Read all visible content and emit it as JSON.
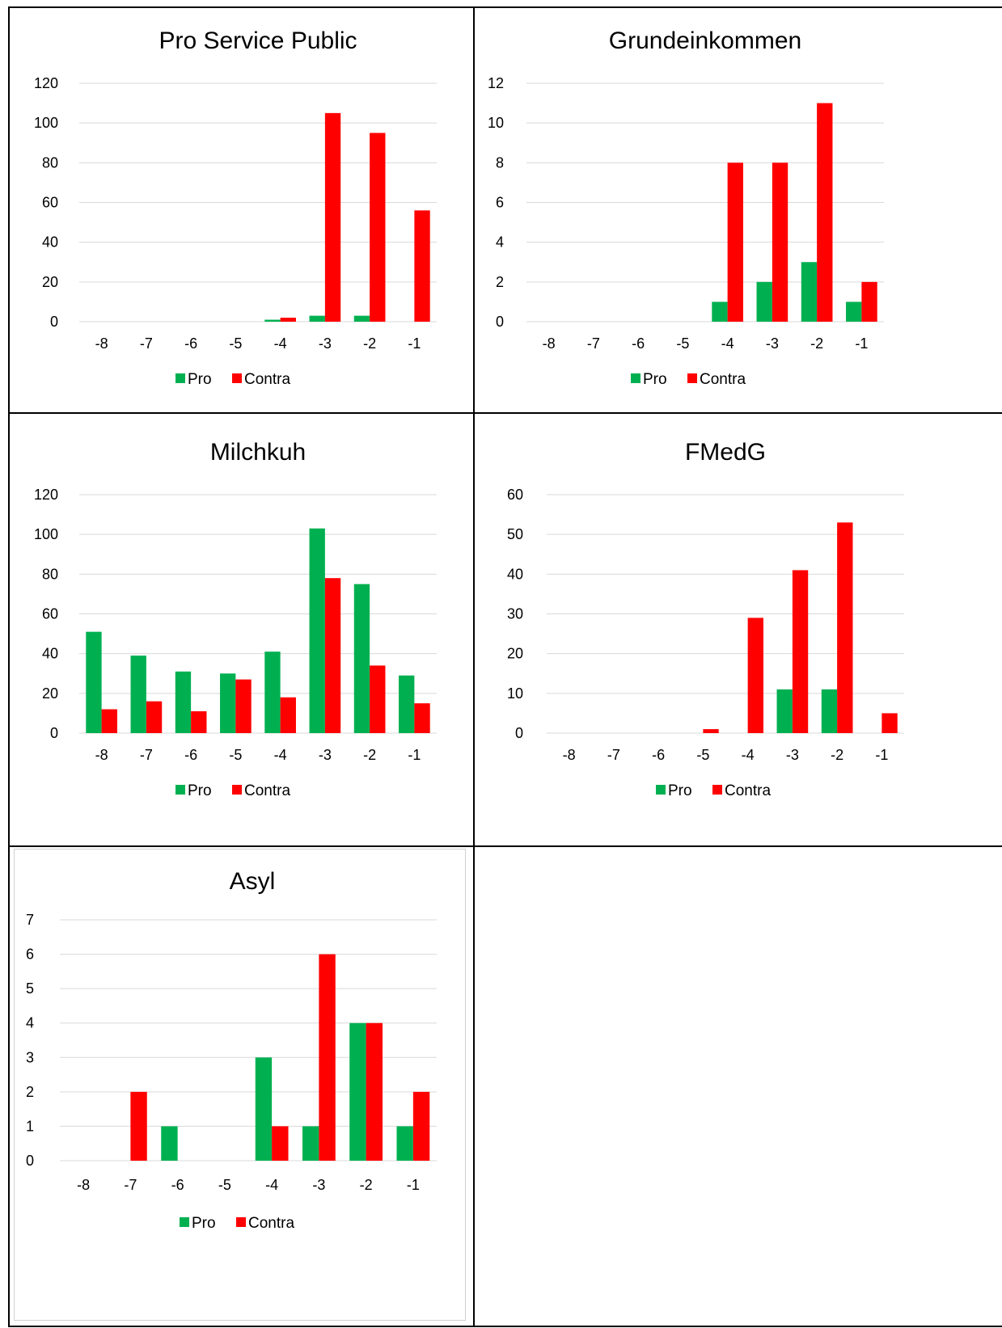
{
  "colors": {
    "pro": "#00b050",
    "contra": "#ff0000"
  },
  "legend": {
    "pro": "Pro",
    "contra": "Contra"
  },
  "chart_data": [
    {
      "type": "bar",
      "title": "Pro Service Public",
      "categories": [
        "-8",
        "-7",
        "-6",
        "-5",
        "-4",
        "-3",
        "-2",
        "-1"
      ],
      "series": [
        {
          "name": "Pro",
          "values": [
            0,
            0,
            0,
            0,
            1,
            3,
            3,
            0
          ]
        },
        {
          "name": "Contra",
          "values": [
            0,
            0,
            0,
            0,
            2,
            105,
            95,
            56
          ]
        }
      ],
      "ylim": [
        0,
        120
      ],
      "yticks": [
        0,
        20,
        40,
        60,
        80,
        100,
        120
      ],
      "grid": true,
      "legend_position": "bottom"
    },
    {
      "type": "bar",
      "title": "Grundeinkommen",
      "categories": [
        "-8",
        "-7",
        "-6",
        "-5",
        "-4",
        "-3",
        "-2",
        "-1"
      ],
      "series": [
        {
          "name": "Pro",
          "values": [
            0,
            0,
            0,
            0,
            1,
            2,
            3,
            1
          ]
        },
        {
          "name": "Contra",
          "values": [
            0,
            0,
            0,
            0,
            8,
            8,
            11,
            2
          ]
        }
      ],
      "ylim": [
        0,
        12
      ],
      "yticks": [
        0,
        2,
        4,
        6,
        8,
        10,
        12
      ],
      "grid": true,
      "legend_position": "bottom"
    },
    {
      "type": "bar",
      "title": "Milchkuh",
      "categories": [
        "-8",
        "-7",
        "-6",
        "-5",
        "-4",
        "-3",
        "-2",
        "-1"
      ],
      "series": [
        {
          "name": "Pro",
          "values": [
            51,
            39,
            31,
            30,
            41,
            103,
            75,
            29
          ]
        },
        {
          "name": "Contra",
          "values": [
            12,
            16,
            11,
            27,
            18,
            78,
            34,
            15
          ]
        }
      ],
      "ylim": [
        0,
        120
      ],
      "yticks": [
        0,
        20,
        40,
        60,
        80,
        100,
        120
      ],
      "grid": true,
      "legend_position": "bottom"
    },
    {
      "type": "bar",
      "title": "FMedG",
      "categories": [
        "-8",
        "-7",
        "-6",
        "-5",
        "-4",
        "-3",
        "-2",
        "-1"
      ],
      "series": [
        {
          "name": "Pro",
          "values": [
            0,
            0,
            0,
            0,
            0,
            11,
            11,
            0
          ]
        },
        {
          "name": "Contra",
          "values": [
            0,
            0,
            0,
            1,
            29,
            41,
            53,
            5
          ]
        }
      ],
      "ylim": [
        0,
        60
      ],
      "yticks": [
        0,
        10,
        20,
        30,
        40,
        50,
        60
      ],
      "grid": true,
      "legend_position": "bottom"
    },
    {
      "type": "bar",
      "title": "Asyl",
      "categories": [
        "-8",
        "-7",
        "-6",
        "-5",
        "-4",
        "-3",
        "-2",
        "-1"
      ],
      "series": [
        {
          "name": "Pro",
          "values": [
            0,
            0,
            1,
            0,
            3,
            1,
            4,
            1
          ]
        },
        {
          "name": "Contra",
          "values": [
            0,
            2,
            0,
            0,
            1,
            6,
            4,
            2
          ]
        }
      ],
      "ylim": [
        0,
        7
      ],
      "yticks": [
        0,
        1,
        2,
        3,
        4,
        5,
        6,
        7
      ],
      "grid": true,
      "legend_position": "bottom"
    }
  ]
}
